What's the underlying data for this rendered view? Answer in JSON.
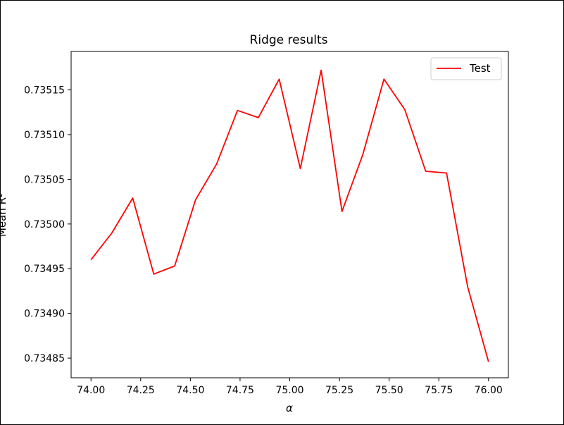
{
  "chart_data": {
    "type": "line",
    "title": "Ridge results",
    "xlabel": "α",
    "ylabel": "Mean R²",
    "xlim": [
      73.9,
      76.1
    ],
    "ylim": [
      0.734828,
      0.735193
    ],
    "x_ticks": [
      74.0,
      74.25,
      74.5,
      74.75,
      75.0,
      75.25,
      75.5,
      75.75,
      76.0
    ],
    "x_tick_labels": [
      "74.00",
      "74.25",
      "74.50",
      "74.75",
      "75.00",
      "75.25",
      "75.50",
      "75.75",
      "76.00"
    ],
    "y_ticks": [
      0.73485,
      0.7349,
      0.73495,
      0.735,
      0.73505,
      0.7351,
      0.73515
    ],
    "y_tick_labels": [
      "0.73485",
      "0.73490",
      "0.73495",
      "0.73500",
      "0.73505",
      "0.73510",
      "0.73515"
    ],
    "legend_position": "top-right",
    "grid": false,
    "series": [
      {
        "name": "Test",
        "color": "#ff0000",
        "x": [
          74.0,
          74.105,
          74.21,
          74.316,
          74.421,
          74.526,
          74.632,
          74.737,
          74.842,
          74.947,
          75.053,
          75.158,
          75.263,
          75.368,
          75.474,
          75.579,
          75.684,
          75.789,
          75.895,
          76.0
        ],
        "y": [
          0.73496,
          0.73499,
          0.735029,
          0.734944,
          0.734953,
          0.735027,
          0.735067,
          0.735127,
          0.735119,
          0.735162,
          0.735062,
          0.735172,
          0.735014,
          0.735078,
          0.735162,
          0.735128,
          0.735059,
          0.735057,
          0.73493,
          0.734846
        ]
      }
    ]
  }
}
